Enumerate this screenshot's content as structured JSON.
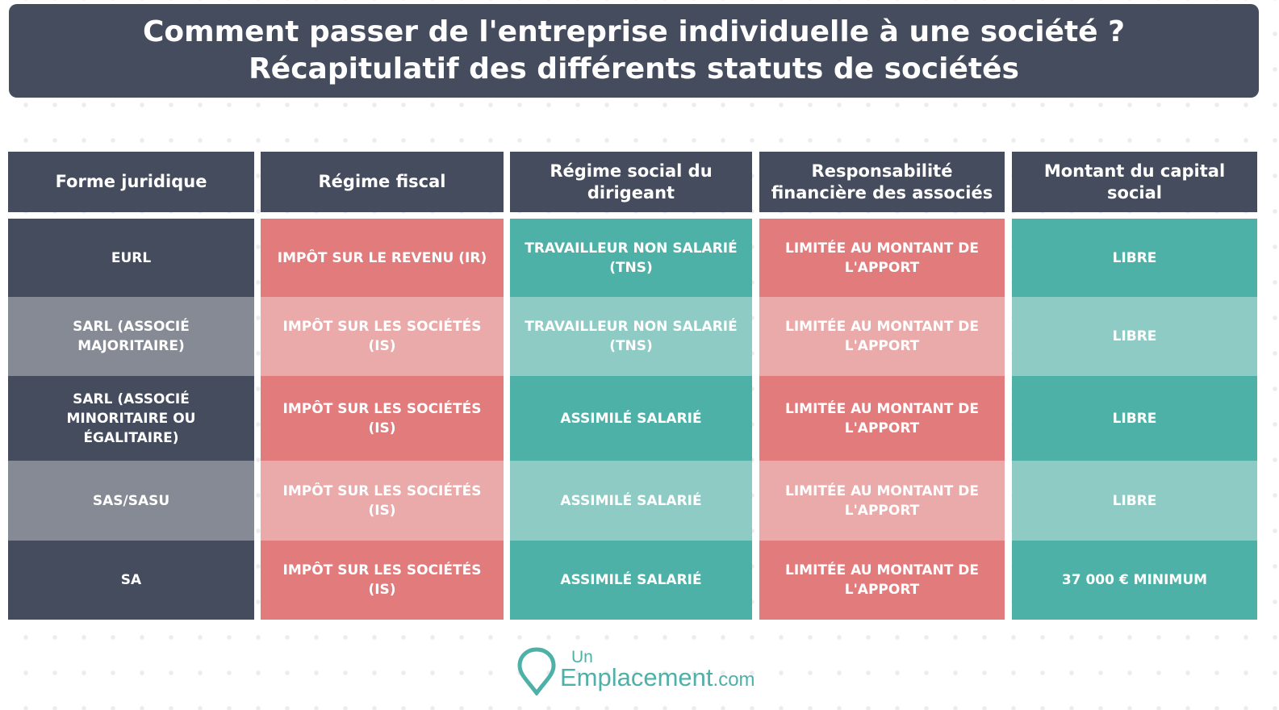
{
  "header": {
    "line1": "Comment passer de l'entreprise individuelle à une société ?",
    "line2": "Récapitulatif des différents statuts de sociétés"
  },
  "table": {
    "columns": [
      "Forme juridique",
      "Régime fiscal",
      "Régime social du dirigeant",
      "Responsabilité financière des associés",
      "Montant du capital social"
    ],
    "rows": [
      [
        "EURL",
        "IMPÔT SUR LE REVENU (IR)",
        "TRAVAILLEUR NON SALARIÉ (TNS)",
        "LIMITÉE AU MONTANT DE L'APPORT",
        "LIBRE"
      ],
      [
        "SARL (ASSOCIÉ MAJORITAIRE)",
        "IMPÔT SUR LES SOCIÉTÉS (IS)",
        "TRAVAILLEUR NON SALARIÉ (TNS)",
        "LIMITÉE AU MONTANT DE L'APPORT",
        "LIBRE"
      ],
      [
        "SARL (ASSOCIÉ MINORITAIRE OU ÉGALITAIRE)",
        "IMPÔT SUR LES SOCIÉTÉS (IS)",
        "ASSIMILÉ SALARIÉ",
        "LIMITÉE AU MONTANT DE L'APPORT",
        "LIBRE"
      ],
      [
        "SAS/SASU",
        "IMPÔT SUR LES SOCIÉTÉS (IS)",
        "ASSIMILÉ SALARIÉ",
        "LIMITÉE AU MONTANT DE L'APPORT",
        "LIBRE"
      ],
      [
        "SA",
        "IMPÔT SUR LES SOCIÉTÉS (IS)",
        "ASSIMILÉ SALARIÉ",
        "LIMITÉE AU MONTANT DE L'APPORT",
        "37 000 € MINIMUM"
      ]
    ]
  },
  "logo": {
    "small": "Un",
    "main": "Emplacement",
    "domain": ".com",
    "icon": "location-pin-icon"
  },
  "colors": {
    "slate": "#454c5d",
    "slate_light": "#868a95",
    "red": "#e17b7c",
    "red_light": "#eaaaa9",
    "teal": "#4eb1a8",
    "teal_light": "#8ecbc5"
  }
}
